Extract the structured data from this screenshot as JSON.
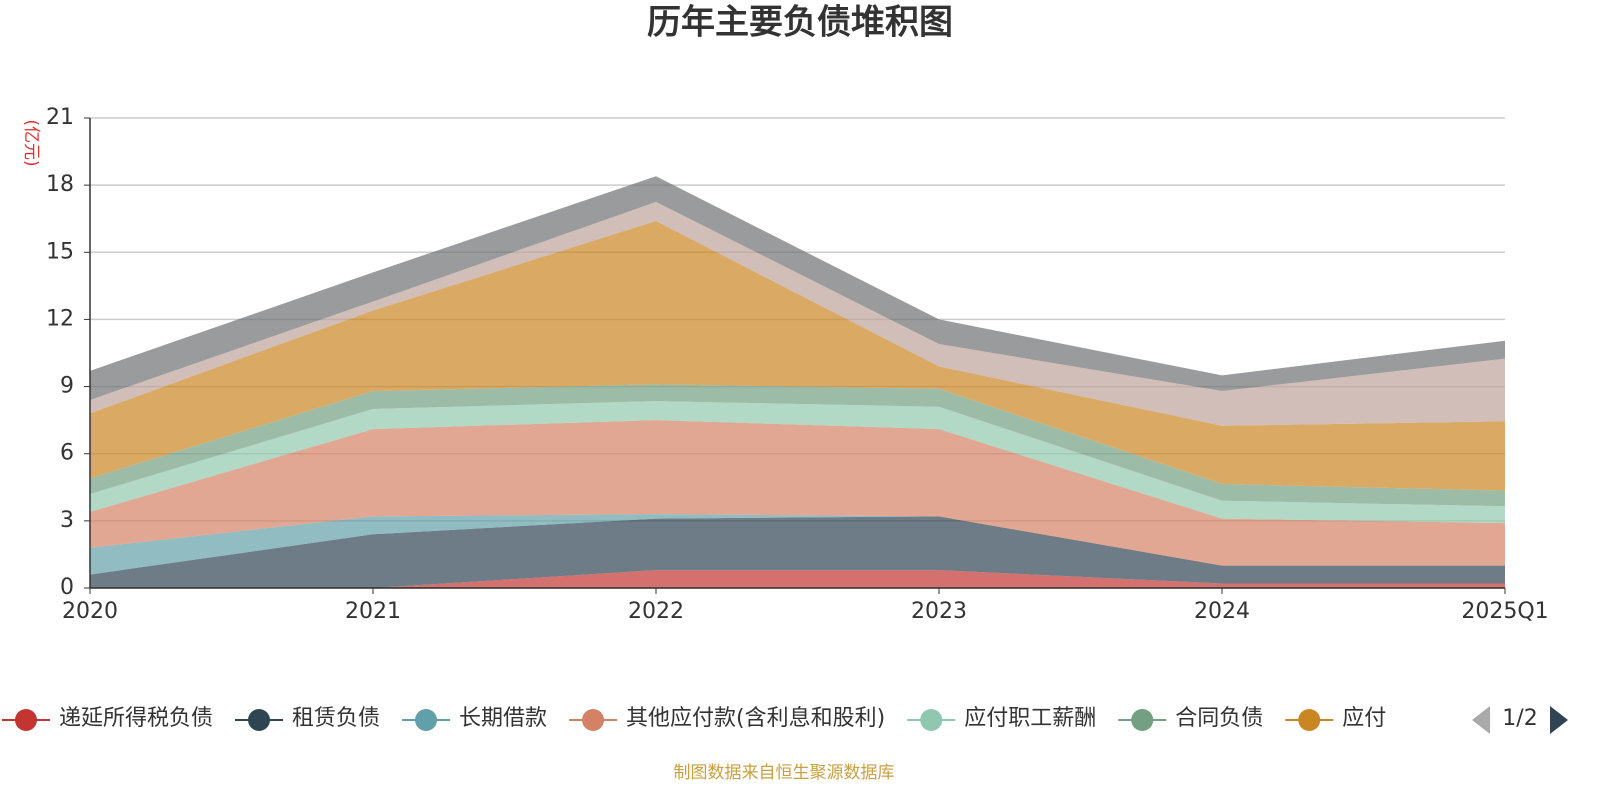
{
  "chart_data": {
    "type": "stacked_area",
    "title": "历年主要负债堆积图",
    "y_label": "(亿元)",
    "categories": [
      "2020",
      "2021",
      "2022",
      "2023",
      "2024",
      "2025Q1"
    ],
    "ylim": [
      0,
      21
    ],
    "yticks": [
      0,
      3,
      6,
      9,
      12,
      15,
      18,
      21
    ],
    "grid": true,
    "series": [
      {
        "name": "递延所得税负债",
        "color": "#c23531",
        "values": [
          0,
          0,
          0.8,
          0.8,
          0.2,
          0.2
        ]
      },
      {
        "name": "租赁负债",
        "color": "#2f4554",
        "values": [
          0.6,
          2.4,
          2.3,
          2.4,
          0.8,
          0.8
        ]
      },
      {
        "name": "长期借款",
        "color": "#61a0a8",
        "values": [
          1.2,
          0.8,
          0.2,
          0,
          0,
          0
        ]
      },
      {
        "name": "其他应付款(含利息和股利)",
        "color": "#d48265",
        "values": [
          1.6,
          3.9,
          4.2,
          3.9,
          2.1,
          1.9
        ]
      },
      {
        "name": "应付职工薪酬",
        "color": "#91c7ae",
        "values": [
          0.8,
          0.9,
          0.85,
          1.0,
          0.8,
          0.75
        ]
      },
      {
        "name": "合同负债",
        "color": "#749f83",
        "values": [
          0.7,
          0.8,
          0.75,
          0.8,
          0.75,
          0.7
        ]
      },
      {
        "name": "应付",
        "color": "#ca8622",
        "values": [
          2.9,
          3.6,
          7.3,
          1.0,
          2.6,
          3.1
        ]
      },
      {
        "color": "#bda29a",
        "values": [
          0.6,
          0.4,
          0.85,
          1.0,
          1.55,
          2.8
        ]
      },
      {
        "color": "#6e7074",
        "values": [
          1.3,
          1.3,
          1.15,
          1.1,
          0.7,
          0.8
        ]
      }
    ],
    "legend_page": "1/2",
    "source": "制图数据来自恒生聚源数据库"
  }
}
